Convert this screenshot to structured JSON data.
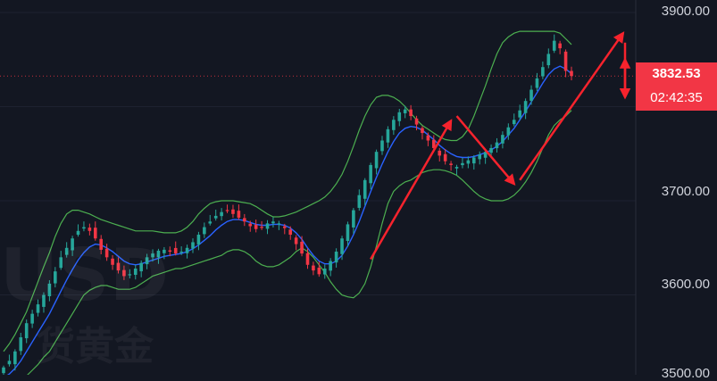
{
  "chart_data": {
    "type": "candlestick",
    "y_axis": {
      "ticks": [
        "3900.00",
        "3700.00",
        "3600.00",
        "3500.00"
      ],
      "ylim": [
        3500,
        3900
      ]
    },
    "current_price": {
      "label": "3832.53",
      "value": 3832.53,
      "countdown": "02:42:35",
      "color": "#f23645"
    },
    "colors": {
      "background": "#131722",
      "up": "#26a69a",
      "down": "#f23645",
      "bollinger": "#4caf50",
      "moving_average": "#2962ff",
      "annotation_arrow": "#f7232d"
    },
    "close_series": [
      3523,
      3530,
      3540,
      3555,
      3570,
      3580,
      3590,
      3600,
      3612,
      3625,
      3640,
      3650,
      3660,
      3668,
      3672,
      3668,
      3660,
      3648,
      3640,
      3632,
      3626,
      3620,
      3622,
      3628,
      3634,
      3640,
      3644,
      3647,
      3648,
      3646,
      3644,
      3646,
      3650,
      3656,
      3664,
      3672,
      3678,
      3684,
      3688,
      3690,
      3686,
      3682,
      3678,
      3673,
      3670,
      3672,
      3676,
      3678,
      3676,
      3671,
      3664,
      3654,
      3644,
      3632,
      3626,
      3622,
      3628,
      3636,
      3646,
      3660,
      3675,
      3690,
      3706,
      3722,
      3738,
      3752,
      3764,
      3776,
      3786,
      3794,
      3797,
      3790,
      3781,
      3772,
      3764,
      3756,
      3748,
      3742,
      3738,
      3736,
      3740,
      3743,
      3746,
      3749,
      3752,
      3756,
      3762,
      3770,
      3778,
      3786,
      3796,
      3806,
      3818,
      3830,
      3842,
      3856,
      3870,
      3862,
      3838,
      3832.53
    ],
    "ma_series": [
      3512,
      3516,
      3522,
      3530,
      3540,
      3550,
      3560,
      3570,
      3580,
      3592,
      3604,
      3616,
      3627,
      3637,
      3645,
      3651,
      3654,
      3653,
      3650,
      3646,
      3641,
      3636,
      3633,
      3632,
      3633,
      3635,
      3637,
      3639,
      3641,
      3642,
      3643,
      3644,
      3646,
      3649,
      3653,
      3658,
      3663,
      3669,
      3674,
      3678,
      3680,
      3680,
      3679,
      3677,
      3675,
      3674,
      3674,
      3675,
      3675,
      3674,
      3671,
      3666,
      3659,
      3650,
      3642,
      3636,
      3633,
      3633,
      3636,
      3642,
      3652,
      3664,
      3678,
      3694,
      3710,
      3725,
      3739,
      3752,
      3763,
      3772,
      3777,
      3779,
      3778,
      3775,
      3770,
      3765,
      3759,
      3754,
      3750,
      3747,
      3746,
      3746,
      3747,
      3749,
      3751,
      3754,
      3758,
      3763,
      3770,
      3777,
      3786,
      3795,
      3805,
      3815,
      3825,
      3834,
      3840,
      3843,
      3840,
      3835
    ],
    "upper_band": [
      3540,
      3548,
      3558,
      3570,
      3582,
      3598,
      3614,
      3630,
      3645,
      3662,
      3676,
      3686,
      3690,
      3690,
      3688,
      3686,
      3683,
      3680,
      3678,
      3676,
      3674,
      3672,
      3670,
      3668,
      3668,
      3668,
      3668,
      3667,
      3666,
      3666,
      3666,
      3668,
      3672,
      3678,
      3686,
      3692,
      3697,
      3699,
      3700,
      3700,
      3700,
      3699,
      3698,
      3697,
      3694,
      3690,
      3686,
      3683,
      3683,
      3684,
      3686,
      3688,
      3691,
      3694,
      3697,
      3700,
      3704,
      3710,
      3718,
      3728,
      3742,
      3758,
      3775,
      3790,
      3802,
      3810,
      3812,
      3812,
      3810,
      3806,
      3800,
      3793,
      3786,
      3780,
      3776,
      3772,
      3768,
      3765,
      3764,
      3764,
      3768,
      3776,
      3790,
      3806,
      3822,
      3840,
      3856,
      3868,
      3874,
      3878,
      3880,
      3880,
      3880,
      3880,
      3880,
      3880,
      3880,
      3878,
      3872,
      3866
    ],
    "lower_band": [
      3495,
      3500,
      3505,
      3510,
      3514,
      3520,
      3526,
      3534,
      3540,
      3550,
      3560,
      3570,
      3580,
      3590,
      3600,
      3605,
      3608,
      3610,
      3610,
      3608,
      3606,
      3606,
      3606,
      3608,
      3612,
      3616,
      3620,
      3622,
      3624,
      3626,
      3628,
      3628,
      3630,
      3632,
      3634,
      3636,
      3638,
      3640,
      3642,
      3646,
      3648,
      3648,
      3646,
      3642,
      3636,
      3632,
      3630,
      3630,
      3632,
      3636,
      3640,
      3646,
      3650,
      3646,
      3640,
      3632,
      3624,
      3614,
      3606,
      3600,
      3598,
      3597,
      3602,
      3612,
      3630,
      3652,
      3676,
      3697,
      3710,
      3716,
      3720,
      3722,
      3726,
      3730,
      3732,
      3733,
      3733,
      3732,
      3730,
      3727,
      3722,
      3716,
      3710,
      3705,
      3702,
      3700,
      3700,
      3700,
      3702,
      3706,
      3712,
      3720,
      3730,
      3742,
      3756,
      3770,
      3780,
      3786,
      3790,
      3796
    ],
    "arrows": [
      {
        "from_index": 64,
        "from_price": 3638,
        "to_index": 78,
        "to_price": 3785
      },
      {
        "from_index": 79,
        "from_price": 3790,
        "to_index": 89,
        "to_price": 3718
      },
      {
        "from_index": 90,
        "from_price": 3722,
        "to_index": 108,
        "to_price": 3878
      },
      {
        "from_index": 109,
        "from_price": 3868,
        "to_index": 111,
        "to_price": 3810
      },
      {
        "from_index": 114,
        "from_price": 3815,
        "to_index": 120,
        "to_price": 3850
      }
    ]
  }
}
